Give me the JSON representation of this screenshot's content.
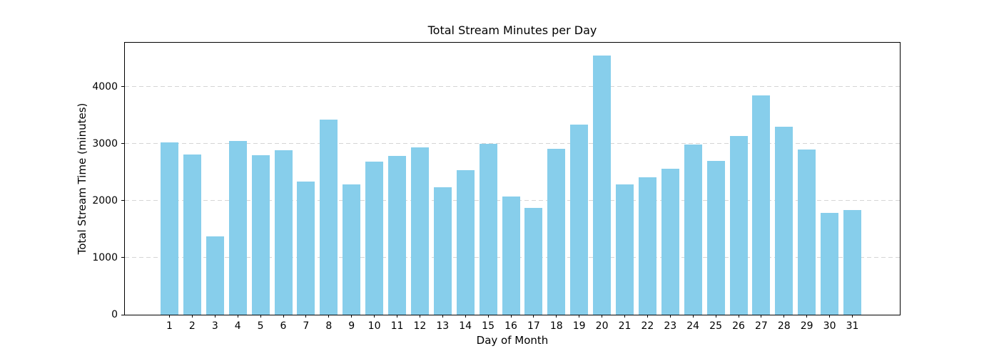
{
  "figure": {
    "background": "#ffffff",
    "frame_color": "#000000"
  },
  "chart_data": {
    "type": "bar",
    "title": "Total Stream Minutes per Day",
    "xlabel": "Day of Month",
    "ylabel": "Total Stream Time (minutes)",
    "categories": [
      1,
      2,
      3,
      4,
      5,
      6,
      7,
      8,
      9,
      10,
      11,
      12,
      13,
      14,
      15,
      16,
      17,
      18,
      19,
      20,
      21,
      22,
      23,
      24,
      25,
      26,
      27,
      28,
      29,
      30,
      31
    ],
    "values": [
      3020,
      2810,
      1370,
      3050,
      2800,
      2890,
      2340,
      3420,
      2280,
      2680,
      2790,
      2940,
      2240,
      2540,
      3000,
      2070,
      1870,
      2910,
      3330,
      4540,
      2280,
      2410,
      2560,
      2990,
      2700,
      3130,
      3850,
      3300,
      2900,
      1780,
      1840
    ],
    "yticks": [
      0,
      1000,
      2000,
      3000,
      4000
    ],
    "ylim": [
      0,
      4770
    ],
    "bar_color": "#87CEEB",
    "grid": {
      "axis": "y",
      "style": "dashed",
      "color": "#d5d5d5"
    },
    "legend": "none"
  }
}
